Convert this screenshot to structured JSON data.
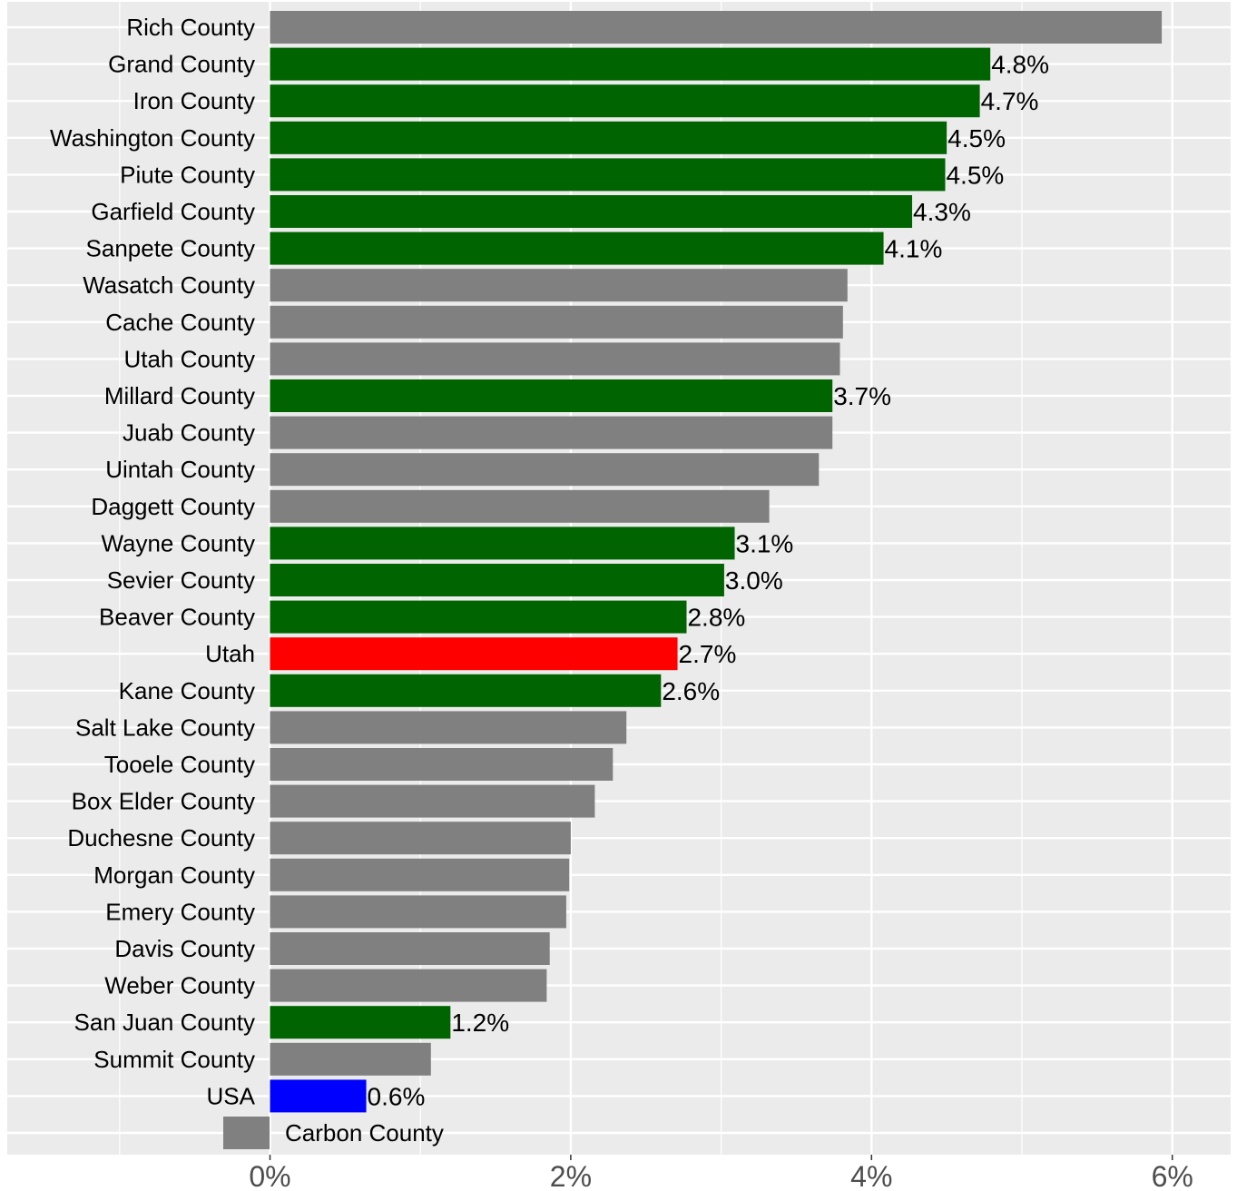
{
  "chart_data": {
    "type": "bar",
    "orientation": "horizontal",
    "title": "",
    "xlabel": "",
    "ylabel": "",
    "xlim": [
      -0.0175,
      0.0625
    ],
    "x_ticks": [
      {
        "value": 0,
        "label": "0%"
      },
      {
        "value": 0.02,
        "label": "2%"
      },
      {
        "value": 0.04,
        "label": "4%"
      },
      {
        "value": 0.06,
        "label": "6%"
      }
    ],
    "grid": true,
    "categories": [
      "Rich County",
      "Grand County",
      "Iron County",
      "Washington County",
      "Piute County",
      "Garfield County",
      "Sanpete County",
      "Wasatch County",
      "Cache County",
      "Utah County",
      "Millard County",
      "Juab County",
      "Uintah County",
      "Daggett County",
      "Wayne County",
      "Sevier County",
      "Beaver County",
      "Utah",
      "Kane County",
      "Salt Lake County",
      "Tooele County",
      "Box Elder County",
      "Duchesne County",
      "Morgan County",
      "Emery County",
      "Davis County",
      "Weber County",
      "San Juan County",
      "Summit County",
      "USA",
      "Carbon County"
    ],
    "values": [
      0.0593,
      0.0479,
      0.0472,
      0.045,
      0.0449,
      0.0427,
      0.0408,
      0.0384,
      0.0381,
      0.0379,
      0.0374,
      0.0374,
      0.0365,
      0.0332,
      0.0309,
      0.0302,
      0.0277,
      0.0271,
      0.026,
      0.0237,
      0.0228,
      0.0216,
      0.02,
      0.0199,
      0.0197,
      0.0186,
      0.0184,
      0.012,
      0.0107,
      0.0064,
      -0.0031
    ],
    "bar_colors": [
      "#808080",
      "#006400",
      "#006400",
      "#006400",
      "#006400",
      "#006400",
      "#006400",
      "#808080",
      "#808080",
      "#808080",
      "#006400",
      "#808080",
      "#808080",
      "#808080",
      "#006400",
      "#006400",
      "#006400",
      "#ff0000",
      "#006400",
      "#808080",
      "#808080",
      "#808080",
      "#808080",
      "#808080",
      "#808080",
      "#808080",
      "#808080",
      "#006400",
      "#808080",
      "#0000ff",
      "#808080"
    ],
    "data_labels": [
      "",
      "4.8%",
      "4.7%",
      "4.5%",
      "4.5%",
      "4.3%",
      "4.1%",
      "",
      "",
      "",
      "3.7%",
      "",
      "",
      "",
      "3.1%",
      "3.0%",
      "2.8%",
      "2.7%",
      "2.6%",
      "",
      "",
      "",
      "",
      "",
      "",
      "",
      "",
      "1.2%",
      "",
      "0.6%",
      ""
    ],
    "colors": {
      "panel_bg": "#ebebeb",
      "grid": "#ffffff",
      "default_bar": "#808080",
      "highlight_bar": "#006400",
      "state_bar": "#ff0000",
      "national_bar": "#0000ff"
    }
  }
}
